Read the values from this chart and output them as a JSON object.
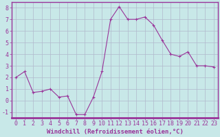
{
  "x": [
    0,
    1,
    2,
    3,
    4,
    5,
    6,
    7,
    8,
    9,
    10,
    11,
    12,
    13,
    14,
    15,
    16,
    17,
    18,
    19,
    20,
    21,
    22,
    23
  ],
  "y": [
    2.0,
    2.5,
    0.7,
    0.8,
    1.0,
    0.3,
    0.4,
    -1.2,
    -1.2,
    0.3,
    2.5,
    7.0,
    8.1,
    7.0,
    7.0,
    7.2,
    6.5,
    5.2,
    4.0,
    3.8,
    4.2,
    3.0,
    3.0,
    2.9
  ],
  "line_color": "#993399",
  "marker": "+",
  "bg_color": "#c8e8e8",
  "grid_color": "#b0b8cc",
  "xlabel": "Windchill (Refroidissement éolien,°C)",
  "xlim": [
    -0.5,
    23.5
  ],
  "ylim": [
    -1.5,
    8.5
  ],
  "yticks": [
    -1,
    0,
    1,
    2,
    3,
    4,
    5,
    6,
    7,
    8
  ],
  "xticks": [
    0,
    1,
    2,
    3,
    4,
    5,
    6,
    7,
    8,
    9,
    10,
    11,
    12,
    13,
    14,
    15,
    16,
    17,
    18,
    19,
    20,
    21,
    22,
    23
  ],
  "axis_color": "#993399",
  "label_fontsize": 6.5,
  "tick_fontsize": 6.0,
  "spine_color": "#993399",
  "bottom_bar_color": "#993399"
}
